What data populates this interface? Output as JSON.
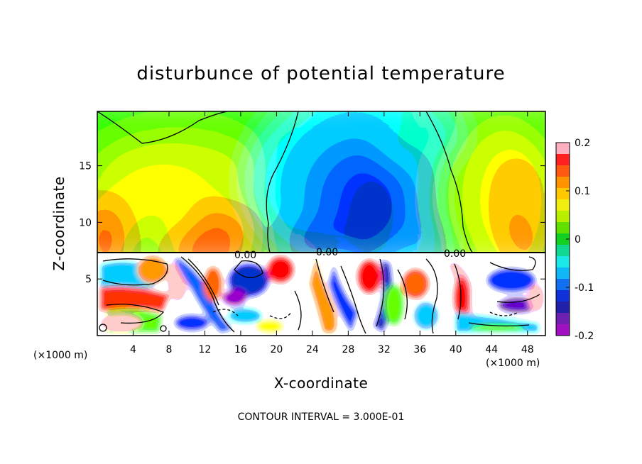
{
  "chart_data": {
    "type": "heatmap",
    "title": "disturbunce of potential temperature",
    "xlabel": "X-coordinate",
    "ylabel": "Z-coordinate",
    "x_unit": "(×1000 m)",
    "x_ticks": [
      4,
      8,
      12,
      16,
      20,
      24,
      28,
      32,
      36,
      40,
      44,
      48
    ],
    "y_ticks": [
      5,
      10,
      15
    ],
    "xlim": [
      0,
      50
    ],
    "ylim": [
      0,
      19.8
    ],
    "colorbar": {
      "ticks": [
        "0.2",
        "0.1",
        "0",
        "-0.1",
        "-0.2"
      ],
      "min": -0.2,
      "max": 0.2,
      "colors": [
        "#ffb0c0",
        "#ff2020",
        "#ff5a10",
        "#ff9400",
        "#ffc800",
        "#f0ee10",
        "#b8f000",
        "#60e000",
        "#14d020",
        "#10d890",
        "#18e8e8",
        "#10b8f8",
        "#1070f0",
        "#1030d8",
        "#2020a8",
        "#7020b0",
        "#a010c0"
      ]
    },
    "contour_interval_text": "CONTOUR INTERVAL = 3.000E-01",
    "contour_label": "0.00"
  }
}
